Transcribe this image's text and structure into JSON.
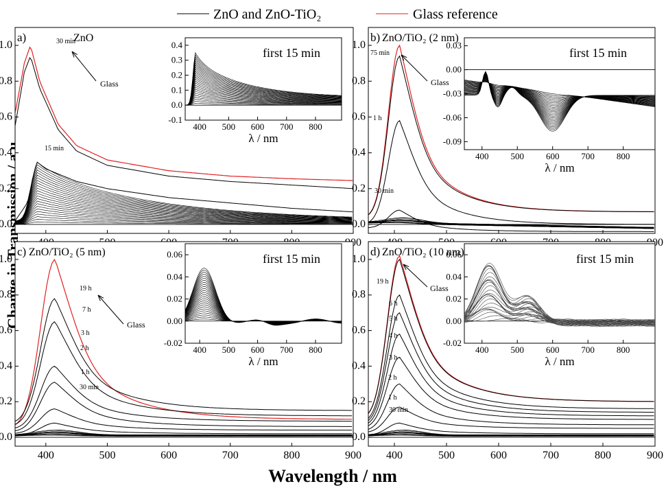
{
  "figure": {
    "legend": [
      {
        "label": "ZnO and ZnO-TiO₂",
        "color": "#000000"
      },
      {
        "label": "Glass reference",
        "color": "#e02020"
      }
    ],
    "ylabel": "Change in Transmission / a.u.",
    "xlabel": "Wavelength / nm"
  },
  "chart_data": [
    {
      "type": "line",
      "panel": "a)",
      "title": "ZnO",
      "xlim": [
        350,
        900
      ],
      "ylim": [
        -0.05,
        1.1
      ],
      "xticks": [
        400,
        500,
        600,
        700,
        800,
        900
      ],
      "yticks": [
        0.0,
        0.2,
        0.4,
        0.6,
        0.8,
        1.0
      ],
      "annotations": [
        "30 min",
        "15 min",
        "Glass"
      ],
      "series": [
        {
          "name": "Glass reference",
          "color": "#e02020",
          "x": [
            350,
            365,
            375,
            390,
            420,
            450,
            500,
            600,
            700,
            800,
            900
          ],
          "values": [
            0.62,
            0.9,
            1.0,
            0.8,
            0.56,
            0.44,
            0.36,
            0.3,
            0.27,
            0.255,
            0.245
          ]
        },
        {
          "name": "30 min",
          "color": "#000000",
          "x": [
            350,
            365,
            375,
            390,
            420,
            450,
            500,
            600,
            700,
            800,
            900
          ],
          "values": [
            0.55,
            0.85,
            0.94,
            0.76,
            0.53,
            0.41,
            0.33,
            0.27,
            0.24,
            0.22,
            0.2
          ]
        },
        {
          "name": "15 min",
          "color": "#000000",
          "x": [
            350,
            370,
            385,
            400,
            450,
            500,
            600,
            700,
            800,
            900
          ],
          "values": [
            0.02,
            0.12,
            0.35,
            0.31,
            0.24,
            0.2,
            0.15,
            0.12,
            0.09,
            0.07
          ]
        }
      ],
      "curve_family_count": 24,
      "inset": {
        "title": "first 15 min",
        "xlabel": "λ / nm",
        "xlim": [
          350,
          890
        ],
        "ylim": [
          -0.1,
          0.45
        ],
        "xticks": [
          400,
          500,
          600,
          700,
          800
        ],
        "yticks": [
          -0.1,
          0.0,
          0.1,
          0.2,
          0.3,
          0.4
        ],
        "peak_x": 385,
        "peak_values_max": 0.35,
        "tail_value_max": 0.055
      }
    },
    {
      "type": "line",
      "panel": "b)",
      "title": "ZnO/TiO₂ (2 nm)",
      "xlim": [
        350,
        900
      ],
      "ylim": [
        -0.05,
        1.1
      ],
      "xticks": [
        400,
        500,
        600,
        700,
        800,
        900
      ],
      "yticks": [
        0.0,
        0.2,
        0.4,
        0.6,
        0.8,
        1.0
      ],
      "annotations": [
        "75 min",
        "1 h",
        "30 min",
        "Glass"
      ],
      "series": [
        {
          "name": "Glass reference",
          "color": "#e02020",
          "peak_x": 410,
          "peak": 1.0,
          "tail": 0.07
        },
        {
          "name": "75 min",
          "color": "#000000",
          "peak_x": 410,
          "peak": 0.94,
          "tail": 0.07
        },
        {
          "name": "1 h",
          "color": "#000000",
          "peak_x": 410,
          "peak": 0.58,
          "tail": 0.0
        },
        {
          "name": "30 min",
          "color": "#000000",
          "peak_x": 410,
          "peak": 0.08,
          "tail": -0.04
        }
      ],
      "inset": {
        "title": "first 15 min",
        "xlabel": "λ / nm",
        "xlim": [
          350,
          890
        ],
        "ylim": [
          -0.1,
          0.04
        ],
        "xticks": [
          400,
          500,
          600,
          700,
          800
        ],
        "yticks": [
          -0.09,
          -0.06,
          -0.03,
          0.0,
          0.03
        ]
      }
    },
    {
      "type": "line",
      "panel": "c)",
      "title": "ZnO/TiO₂ (5 nm)",
      "xlim": [
        350,
        900
      ],
      "ylim": [
        -0.05,
        1.1
      ],
      "xticks": [
        400,
        500,
        600,
        700,
        800,
        900
      ],
      "yticks": [
        0.0,
        0.2,
        0.4,
        0.6,
        0.8,
        1.0
      ],
      "annotations": [
        "19 h",
        "7 h",
        "3 h",
        "2 h",
        "1 h",
        "30 min",
        "Glass"
      ],
      "series": [
        {
          "name": "Glass reference",
          "color": "#e02020",
          "peak_x": 415,
          "peak": 1.0,
          "tail": 0.1
        },
        {
          "name": "19 h",
          "color": "#000000",
          "peak_x": 415,
          "peak": 0.78,
          "tail": 0.15
        },
        {
          "name": "7 h",
          "color": "#000000",
          "peak_x": 415,
          "peak": 0.65,
          "tail": 0.12
        },
        {
          "name": "3 h",
          "color": "#000000",
          "peak_x": 415,
          "peak": 0.4,
          "tail": 0.09
        },
        {
          "name": "2 h",
          "color": "#000000",
          "peak_x": 415,
          "peak": 0.31,
          "tail": 0.06
        },
        {
          "name": "1 h",
          "color": "#000000",
          "peak_x": 415,
          "peak": 0.16,
          "tail": 0.04
        },
        {
          "name": "30 min",
          "color": "#000000",
          "peak_x": 415,
          "peak": 0.08,
          "tail": 0.02
        }
      ],
      "inset": {
        "title": "first 15 min",
        "xlabel": "λ / nm",
        "xlim": [
          350,
          890
        ],
        "ylim": [
          -0.02,
          0.07
        ],
        "xticks": [
          400,
          500,
          600,
          700,
          800
        ],
        "yticks": [
          -0.02,
          0.0,
          0.02,
          0.04,
          0.06
        ]
      }
    },
    {
      "type": "line",
      "panel": "d)",
      "title": "ZnO/TiO₂ (10 nm)",
      "xlim": [
        350,
        900
      ],
      "ylim": [
        -0.05,
        1.1
      ],
      "xticks": [
        400,
        500,
        600,
        700,
        800,
        900
      ],
      "yticks": [
        0.0,
        0.2,
        0.4,
        0.6,
        0.8,
        1.0
      ],
      "annotations": [
        "19 h",
        "6 h",
        "5 h",
        "4 h",
        "3 h",
        "2 h",
        "1 h",
        "30 min",
        "Glass"
      ],
      "series": [
        {
          "name": "Glass reference",
          "color": "#e02020",
          "peak_x": 410,
          "peak": 1.02,
          "tail": 0.2
        },
        {
          "name": "19 h",
          "color": "#000000",
          "peak_x": 410,
          "peak": 1.0,
          "tail": 0.2
        },
        {
          "name": "6 h",
          "color": "#000000",
          "peak_x": 410,
          "peak": 0.8,
          "tail": 0.16
        },
        {
          "name": "5 h",
          "color": "#000000",
          "peak_x": 410,
          "peak": 0.7,
          "tail": 0.14
        },
        {
          "name": "4 h",
          "color": "#000000",
          "peak_x": 410,
          "peak": 0.58,
          "tail": 0.12
        },
        {
          "name": "3 h",
          "color": "#000000",
          "peak_x": 410,
          "peak": 0.45,
          "tail": 0.1
        },
        {
          "name": "2 h",
          "color": "#000000",
          "peak_x": 410,
          "peak": 0.3,
          "tail": 0.07
        },
        {
          "name": "1 h",
          "color": "#000000",
          "peak_x": 410,
          "peak": 0.17,
          "tail": 0.05
        },
        {
          "name": "30 min",
          "color": "#000000",
          "peak_x": 410,
          "peak": 0.08,
          "tail": 0.02
        }
      ],
      "inset": {
        "title": "first 15 min",
        "xlabel": "λ / nm",
        "xlim": [
          350,
          890
        ],
        "ylim": [
          -0.02,
          0.07
        ],
        "xticks": [
          400,
          500,
          600,
          700,
          800
        ],
        "yticks": [
          -0.02,
          0.0,
          0.02,
          0.04,
          0.06
        ]
      }
    }
  ]
}
